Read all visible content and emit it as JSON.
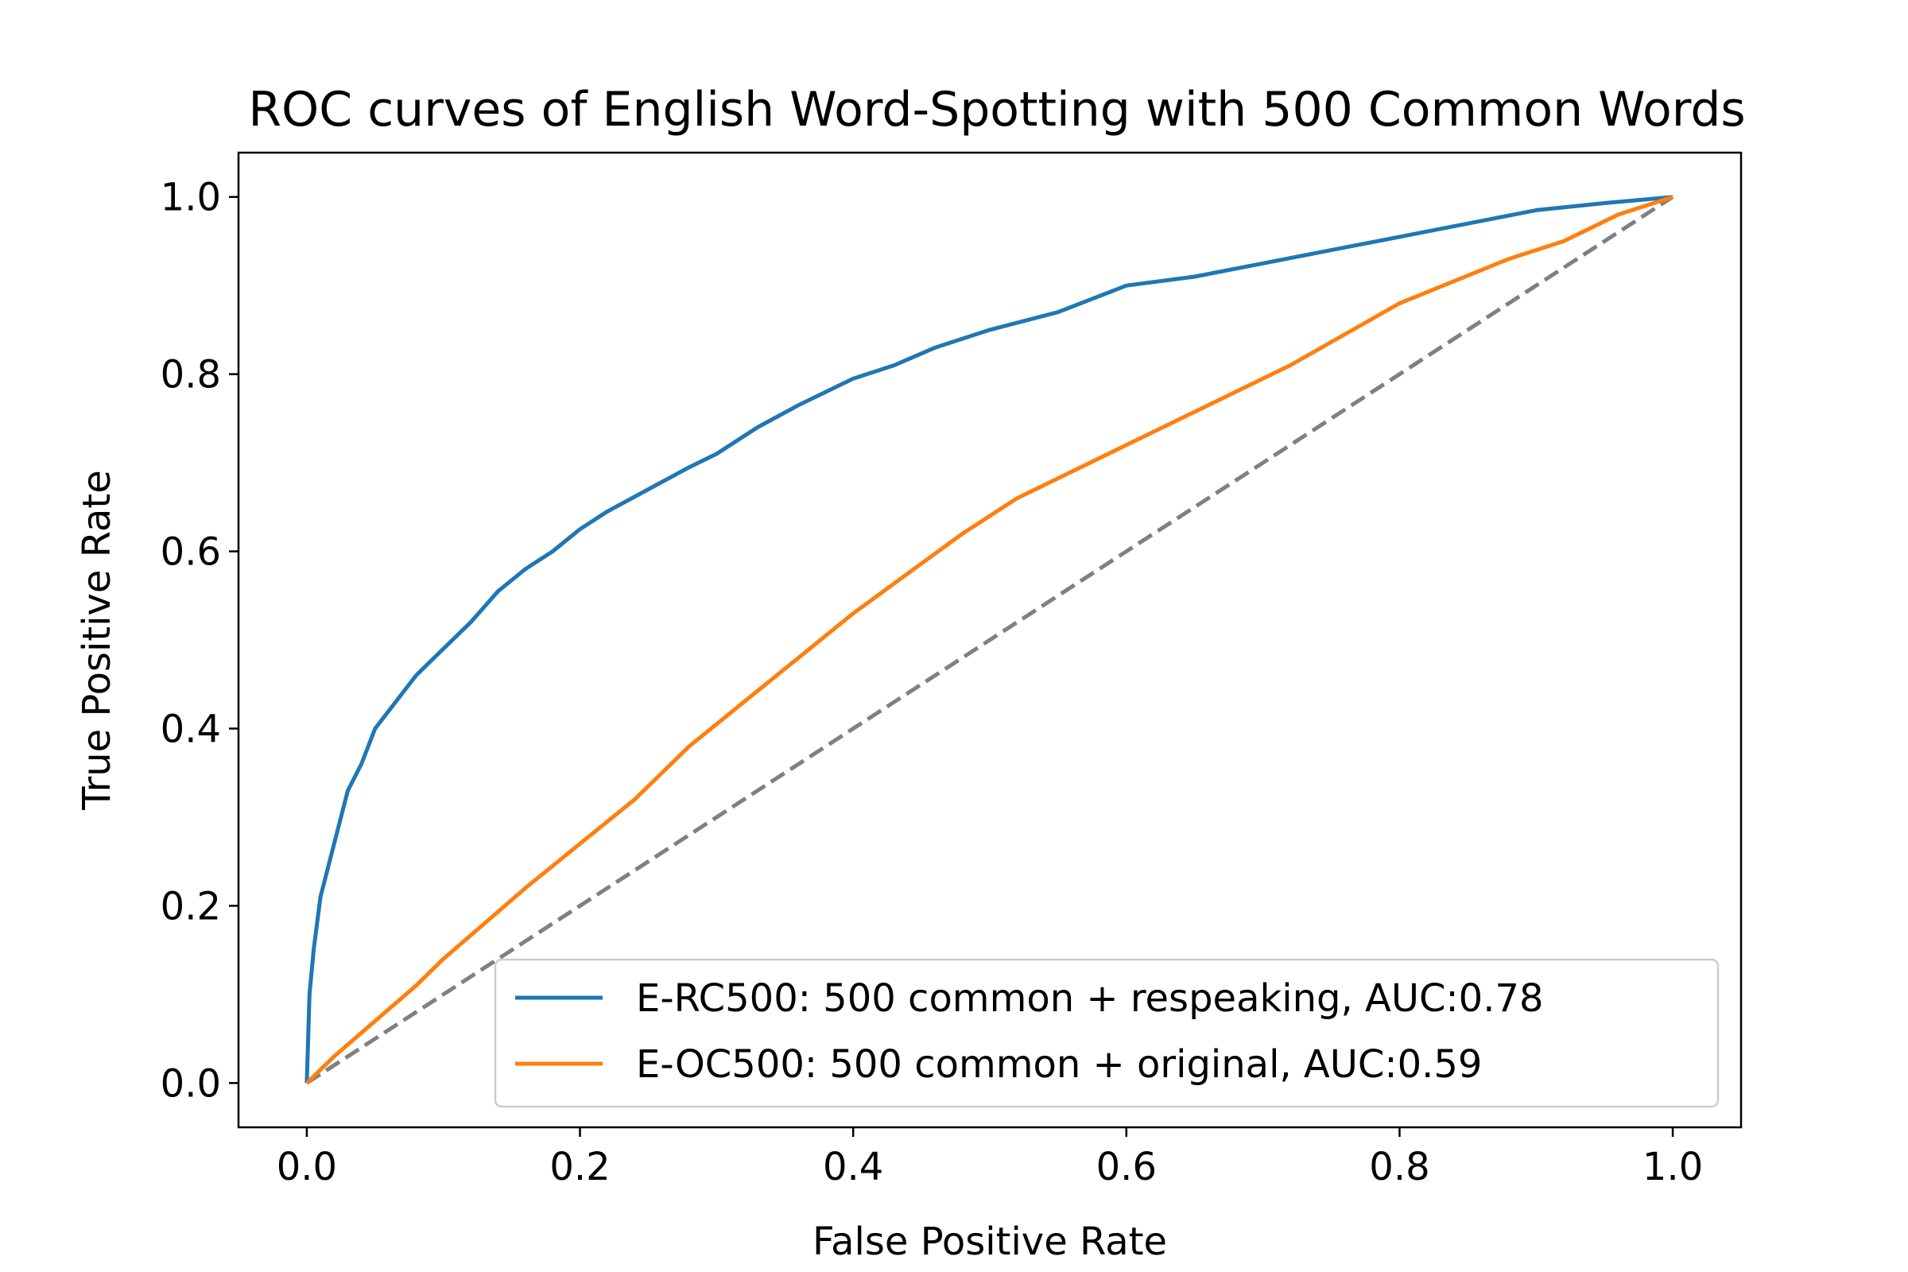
{
  "chart_data": {
    "type": "line",
    "title": "ROC curves of English Word-Spotting with 500 Common Words",
    "xlabel": "False Positive Rate",
    "ylabel": "True Positive Rate",
    "xlim": [
      -0.05,
      1.05
    ],
    "ylim": [
      -0.05,
      1.05
    ],
    "xticks": [
      0.0,
      0.2,
      0.4,
      0.6,
      0.8,
      1.0
    ],
    "xtick_labels": [
      "0.0",
      "0.2",
      "0.4",
      "0.6",
      "0.8",
      "1.0"
    ],
    "yticks": [
      0.0,
      0.2,
      0.4,
      0.6,
      0.8,
      1.0
    ],
    "ytick_labels": [
      "0.0",
      "0.2",
      "0.4",
      "0.6",
      "0.8",
      "1.0"
    ],
    "grid": false,
    "legend_position": "lower-right",
    "series": [
      {
        "name": "E-RC500: 500 common + respeaking, AUC:0.78",
        "color": "#1f77b4",
        "style": "solid",
        "x": [
          0.0,
          0.002,
          0.005,
          0.01,
          0.015,
          0.02,
          0.025,
          0.03,
          0.04,
          0.05,
          0.06,
          0.07,
          0.08,
          0.1,
          0.12,
          0.14,
          0.16,
          0.18,
          0.2,
          0.22,
          0.25,
          0.28,
          0.3,
          0.33,
          0.36,
          0.4,
          0.43,
          0.46,
          0.5,
          0.55,
          0.6,
          0.65,
          0.7,
          0.75,
          0.8,
          0.85,
          0.9,
          0.95,
          1.0
        ],
        "y": [
          0.0,
          0.1,
          0.15,
          0.21,
          0.24,
          0.27,
          0.3,
          0.33,
          0.36,
          0.4,
          0.42,
          0.44,
          0.46,
          0.49,
          0.52,
          0.555,
          0.58,
          0.6,
          0.625,
          0.645,
          0.67,
          0.695,
          0.71,
          0.74,
          0.765,
          0.795,
          0.81,
          0.83,
          0.85,
          0.87,
          0.9,
          0.91,
          0.925,
          0.94,
          0.955,
          0.97,
          0.985,
          0.993,
          1.0
        ]
      },
      {
        "name": "E-OC500: 500 common + original, AUC:0.59",
        "color": "#ff7f0e",
        "style": "solid",
        "x": [
          0.0,
          0.02,
          0.05,
          0.08,
          0.1,
          0.13,
          0.16,
          0.2,
          0.24,
          0.28,
          0.32,
          0.36,
          0.4,
          0.44,
          0.48,
          0.52,
          0.56,
          0.6,
          0.64,
          0.68,
          0.72,
          0.76,
          0.8,
          0.84,
          0.88,
          0.92,
          0.96,
          1.0
        ],
        "y": [
          0.0,
          0.03,
          0.07,
          0.11,
          0.14,
          0.18,
          0.22,
          0.27,
          0.32,
          0.38,
          0.43,
          0.48,
          0.53,
          0.575,
          0.62,
          0.66,
          0.69,
          0.72,
          0.75,
          0.78,
          0.81,
          0.845,
          0.88,
          0.905,
          0.93,
          0.95,
          0.98,
          1.0
        ]
      },
      {
        "name": "",
        "color": "#808080",
        "style": "dashed",
        "x": [
          0.0,
          1.0
        ],
        "y": [
          0.0,
          1.0
        ]
      }
    ],
    "legend": [
      {
        "label": "E-RC500: 500 common + respeaking, AUC:0.78",
        "color": "#1f77b4"
      },
      {
        "label": "E-OC500: 500 common + original, AUC:0.59",
        "color": "#ff7f0e"
      }
    ]
  }
}
